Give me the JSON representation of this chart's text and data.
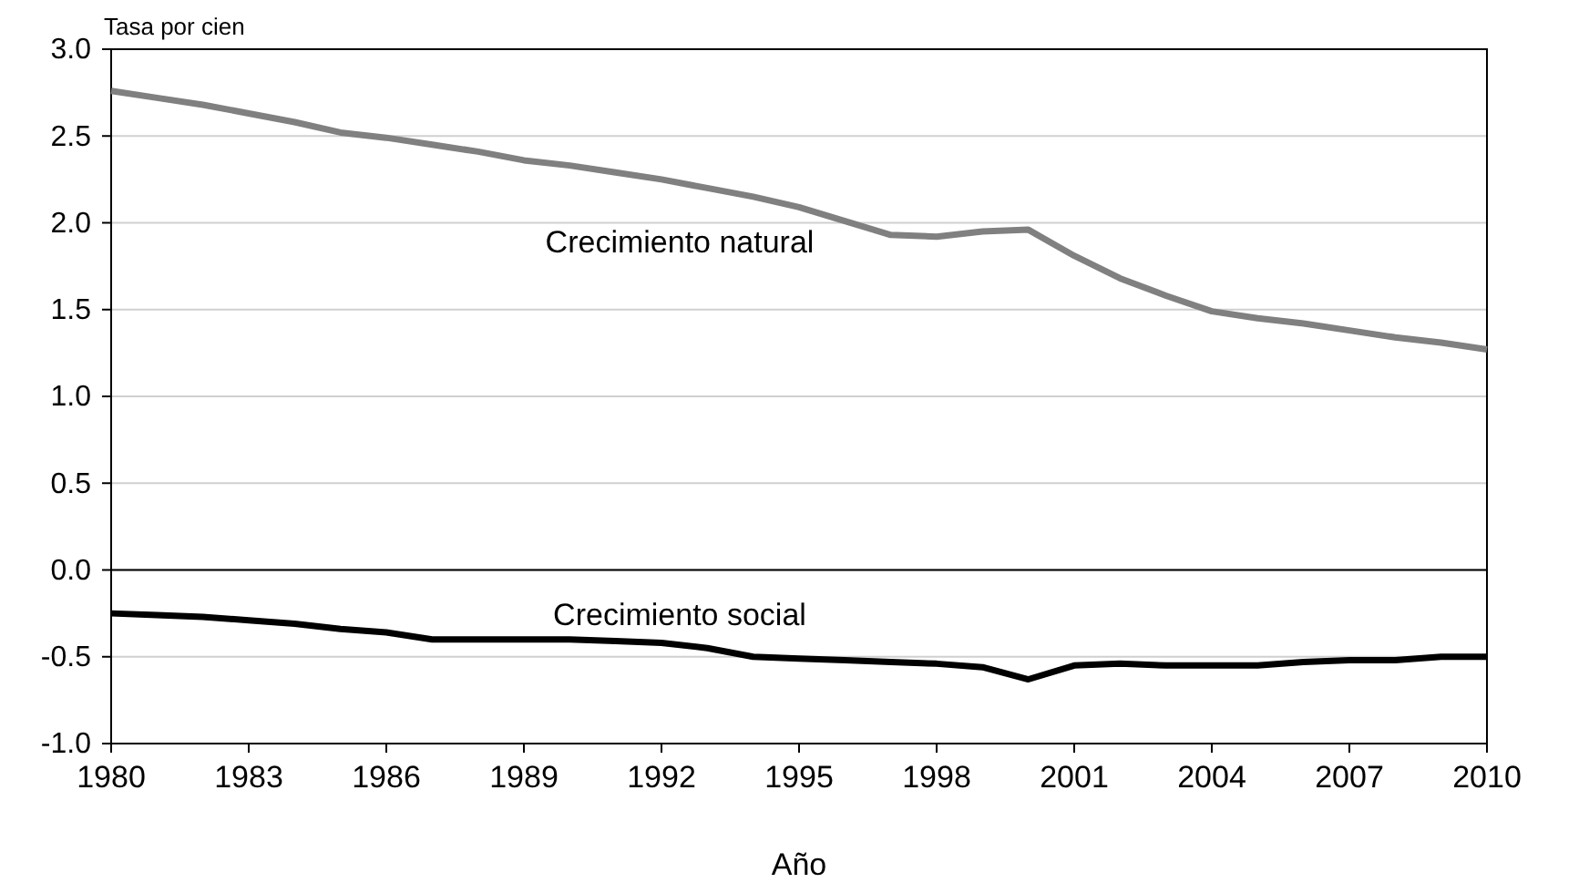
{
  "chart_data": {
    "type": "line",
    "ylabel": "Tasa por cien",
    "xlabel": "Año",
    "x": [
      1980,
      1981,
      1982,
      1983,
      1984,
      1985,
      1986,
      1987,
      1988,
      1989,
      1990,
      1991,
      1992,
      1993,
      1994,
      1995,
      1996,
      1997,
      1998,
      1999,
      2000,
      2001,
      2002,
      2003,
      2004,
      2005,
      2006,
      2007,
      2008,
      2009,
      2010
    ],
    "series": [
      {
        "name": "Crecimiento natural",
        "color": "#808080",
        "values": [
          2.76,
          2.72,
          2.68,
          2.63,
          2.58,
          2.52,
          2.49,
          2.45,
          2.41,
          2.36,
          2.33,
          2.29,
          2.25,
          2.2,
          2.15,
          2.09,
          2.01,
          1.93,
          1.92,
          1.95,
          1.96,
          1.81,
          1.68,
          1.58,
          1.49,
          1.45,
          1.42,
          1.38,
          1.34,
          1.31,
          1.27
        ]
      },
      {
        "name": "Crecimiento social",
        "color": "#000000",
        "values": [
          -0.25,
          -0.26,
          -0.27,
          -0.29,
          -0.31,
          -0.34,
          -0.36,
          -0.4,
          -0.4,
          -0.4,
          -0.4,
          -0.41,
          -0.42,
          -0.45,
          -0.5,
          -0.51,
          -0.52,
          -0.53,
          -0.54,
          -0.56,
          -0.63,
          -0.55,
          -0.54,
          -0.55,
          -0.55,
          -0.55,
          -0.53,
          -0.52,
          -0.52,
          -0.5,
          -0.5
        ]
      }
    ],
    "xlim": [
      1980,
      2010
    ],
    "xticks": [
      1980,
      1983,
      1986,
      1989,
      1992,
      1995,
      1998,
      2001,
      2004,
      2007,
      2010
    ],
    "ylim": [
      -1,
      3
    ],
    "yticks": [
      {
        "value": -1,
        "label": "-1.0"
      },
      {
        "value": -0.5,
        "label": "-0.5"
      },
      {
        "value": 0,
        "label": "0.0"
      },
      {
        "value": 0.5,
        "label": "0.5"
      },
      {
        "value": 1,
        "label": "1.0"
      },
      {
        "value": 1.5,
        "label": "1.5"
      },
      {
        "value": 2,
        "label": "2.0"
      },
      {
        "value": 2.5,
        "label": "2.5"
      },
      {
        "value": 3,
        "label": "3.0"
      }
    ],
    "grid": "y",
    "marker": "none",
    "line_style": "solid"
  }
}
